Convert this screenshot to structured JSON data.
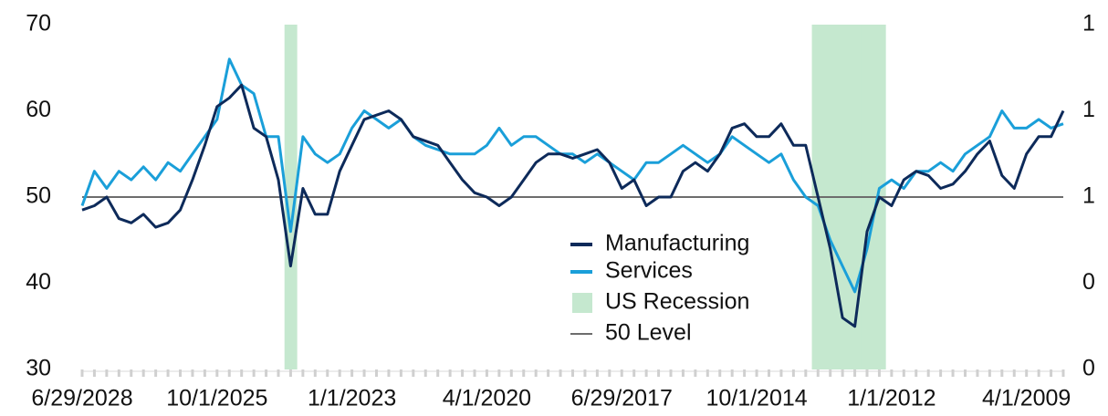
{
  "chart_data": {
    "type": "line",
    "categories": [
      "6/29/2028",
      null,
      null,
      null,
      null,
      null,
      null,
      null,
      null,
      null,
      null,
      "10/1/2025",
      null,
      null,
      null,
      null,
      null,
      null,
      null,
      null,
      null,
      null,
      "1/1/2023",
      null,
      null,
      null,
      null,
      null,
      null,
      null,
      null,
      null,
      null,
      "4/1/2020",
      null,
      null,
      null,
      null,
      null,
      null,
      null,
      null,
      null,
      null,
      "6/29/2017",
      null,
      null,
      null,
      null,
      null,
      null,
      null,
      null,
      null,
      null,
      "10/1/2014",
      null,
      null,
      null,
      null,
      null,
      null,
      null,
      null,
      null,
      null,
      "1/1/2012",
      null,
      null,
      null,
      null,
      null,
      null,
      null,
      null,
      null,
      null,
      "4/1/2009",
      null,
      null,
      null
    ],
    "series": [
      {
        "name": "Manufacturing",
        "color": "#0d2a5a",
        "values": [
          48.5,
          49,
          50,
          47.5,
          47,
          48,
          46.5,
          47,
          48.5,
          52,
          56,
          60.5,
          61.5,
          63,
          58,
          57,
          52,
          42,
          51,
          48,
          48,
          53,
          56,
          59,
          59.5,
          60,
          59,
          57,
          56.5,
          56,
          54,
          52,
          50.5,
          50,
          49,
          50,
          52,
          54,
          55,
          55,
          54.5,
          55,
          55.5,
          54,
          51,
          52,
          49,
          50,
          50,
          53,
          54,
          53,
          55,
          58,
          58.5,
          57,
          57,
          58.5,
          56,
          56,
          50,
          44,
          36,
          35,
          46,
          50,
          49,
          52,
          53,
          52.5,
          51,
          51.5,
          53,
          55,
          56.5,
          52.5,
          51,
          55,
          57,
          57,
          60
        ]
      },
      {
        "name": "Services",
        "color": "#1a9fd9",
        "values": [
          49,
          53,
          51,
          53,
          52,
          53.5,
          52,
          54,
          53,
          55,
          57,
          59,
          66,
          63,
          62,
          57,
          57,
          46,
          57,
          55,
          54,
          55,
          58,
          60,
          59,
          58,
          59,
          57,
          56,
          55.5,
          55,
          55,
          55,
          56,
          58,
          56,
          57,
          57,
          56,
          55,
          55,
          54,
          55,
          54,
          53,
          52,
          54,
          54,
          55,
          56,
          55,
          54,
          55,
          57,
          56,
          55,
          54,
          55,
          52,
          50,
          49,
          45,
          42,
          39,
          44,
          51,
          52,
          51,
          53,
          53,
          54,
          53,
          55,
          56,
          57,
          60,
          58,
          58,
          59,
          58,
          58.5
        ]
      },
      {
        "name": "US Recession",
        "color": "#c5e8cf",
        "axis": "y2",
        "style": "band",
        "values": [
          0,
          0,
          0,
          0,
          0,
          0,
          0,
          0,
          0,
          0,
          0,
          0,
          0,
          0,
          0,
          0,
          0,
          1,
          0,
          0,
          0,
          0,
          0,
          0,
          0,
          0,
          0,
          0,
          0,
          0,
          0,
          0,
          0,
          0,
          0,
          0,
          0,
          0,
          0,
          0,
          0,
          0,
          0,
          0,
          0,
          0,
          0,
          0,
          0,
          0,
          0,
          0,
          0,
          0,
          0,
          0,
          0,
          0,
          0,
          0,
          1,
          1,
          1,
          1,
          1,
          1,
          0,
          0,
          0,
          0,
          0,
          0,
          0,
          0,
          0,
          0,
          0,
          0,
          0,
          0,
          0
        ]
      }
    ],
    "reference_line": {
      "name": "50 Level",
      "value": 50,
      "color": "#6d6d6d"
    },
    "ylim": [
      30,
      70
    ],
    "yticks": [
      30,
      40,
      50,
      60,
      70
    ],
    "y2lim": [
      0,
      1
    ],
    "y2ticks": [
      {
        "value": 0,
        "label": "0"
      },
      {
        "value": 0.25,
        "label": "0"
      },
      {
        "value": 0.5,
        "label": "1"
      },
      {
        "value": 0.75,
        "label": "1"
      },
      {
        "value": 1,
        "label": "1"
      }
    ]
  }
}
